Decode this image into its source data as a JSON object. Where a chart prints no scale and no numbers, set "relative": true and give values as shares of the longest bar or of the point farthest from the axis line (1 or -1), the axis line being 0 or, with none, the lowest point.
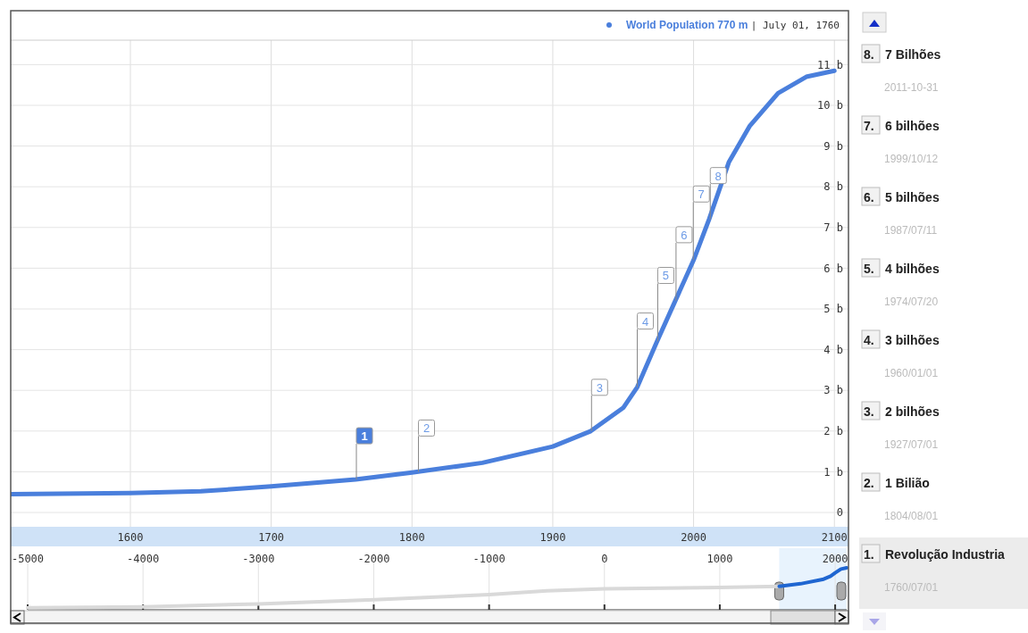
{
  "chart_data": [
    {
      "type": "line",
      "series": [
        {
          "name": "World Population",
          "color": "#4a7fdc",
          "x": [
            1515,
            1600,
            1650,
            1700,
            1760,
            1800,
            1850,
            1900,
            1927,
            1950,
            1960,
            1974,
            1987,
            2000,
            2011,
            2025,
            2040,
            2060,
            2080,
            2100
          ],
          "values": [
            0.45,
            0.48,
            0.52,
            0.64,
            0.81,
            0.98,
            1.22,
            1.62,
            2.0,
            2.57,
            3.08,
            4.2,
            5.2,
            6.2,
            7.2,
            8.6,
            9.5,
            10.3,
            10.7,
            10.85
          ]
        }
      ],
      "xlim": [
        1515,
        2110
      ],
      "xticks": [
        1600,
        1700,
        1800,
        1900,
        2000,
        2100
      ],
      "ylim": [
        -0.35,
        11.6
      ],
      "yticks": [
        {
          "value": 0,
          "label": "0"
        },
        {
          "value": 1,
          "label": "1 b"
        },
        {
          "value": 2,
          "label": "2 b"
        },
        {
          "value": 3,
          "label": "3 b"
        },
        {
          "value": 4,
          "label": "4 b"
        },
        {
          "value": 5,
          "label": "5 b"
        },
        {
          "value": 6,
          "label": "6 b"
        },
        {
          "value": 7,
          "label": "7 b"
        },
        {
          "value": 8,
          "label": "8 b"
        },
        {
          "value": 9,
          "label": "9 b"
        },
        {
          "value": 10,
          "label": "10 b"
        },
        {
          "value": 11,
          "label": "11 b"
        }
      ],
      "grid": true,
      "legend": "top right",
      "annotations": [
        "770 m | July 01, 1760",
        {
          "text": "1",
          "x": 1760.5,
          "y": 0.81
        },
        {
          "text": "2",
          "x": 1804.58,
          "y": 1.0
        },
        {
          "text": "3",
          "x": 1927.5,
          "y": 2.0
        },
        {
          "text": "4",
          "x": 1960.0,
          "y": 3.08
        },
        {
          "text": "5",
          "x": 1974.55,
          "y": 4.2
        },
        {
          "text": "6",
          "x": 1987.52,
          "y": 5.2
        },
        {
          "text": "7",
          "x": 1999.78,
          "y": 6.2
        },
        {
          "text": "8",
          "x": 2011.83,
          "y": 7.2
        },
        "8. 7 Bilhões",
        "2011-10-31",
        "7. 6 bilhões",
        "1999/10/12",
        "6. 5 bilhões",
        "1987/07/11",
        "5. 4 bilhões",
        "1974/07/20",
        "4. 3 bilhões",
        "1960/01/01",
        "3. 2 bilhões",
        "1927/07/01",
        "2. 1 Bilião",
        "1804/08/01",
        "1. Revolução Industria",
        "1760/07/01"
      ]
    },
    {
      "type": "line",
      "relative": true,
      "series": [
        {
          "color": "#d9d9d9",
          "x": [
            -5000,
            -4000,
            -3000,
            -2000,
            -1000,
            -500,
            0,
            1000,
            1515
          ],
          "values": [
            0.05,
            0.07,
            0.14,
            0.24,
            0.36,
            0.45,
            0.5,
            0.53,
            0.56
          ]
        },
        {
          "color": "#1f66d1",
          "x": [
            1515,
            1700,
            1900,
            1960,
            2000,
            2050,
            2100
          ],
          "values": [
            0.56,
            0.62,
            0.73,
            0.8,
            0.88,
            0.97,
            1.0
          ]
        }
      ],
      "xlim": [
        -5000,
        2100
      ],
      "xticks": [
        -5000,
        -4000,
        -3000,
        -2000,
        -1000,
        0,
        1000,
        2000
      ],
      "grid": "x",
      "tick_labels": "x",
      "bands": [
        {
          "axis": "x",
          "from": 1515,
          "to": 2100,
          "color": "#e8f3fd"
        }
      ]
    }
  ]
}
